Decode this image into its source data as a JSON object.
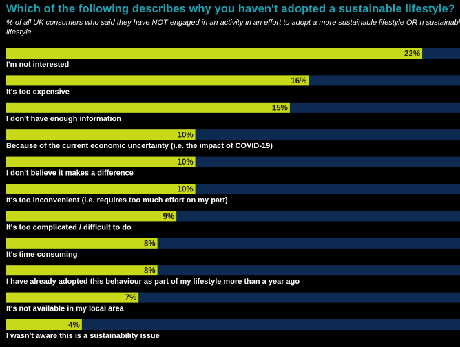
{
  "title": "Which of the following describes why you haven't adopted a sustainable lifestyle?",
  "subtitle": "% of all UK consumers who said they have NOT engaged in an activity in an effort to adopt a more sustainable lifestyle OR h sustainable lifestyle",
  "colors": {
    "background": "#000000",
    "title": "#1fa0b3",
    "bar_fill": "#c8d91a",
    "bar_track": "#0d2a52",
    "label_text": "#ffffff",
    "value_text": "#1a1a1a"
  },
  "chart_data": {
    "type": "bar",
    "orientation": "horizontal",
    "title": "Which of the following describes why you haven't adopted a sustainable lifestyle?",
    "categories": [
      "I'm not interested",
      "It's too expensive",
      "I don't have enough information",
      "Because of the current economic uncertainty (i.e. the impact of COVID-19)",
      "I don't believe it makes a difference",
      "It's too inconvenient (i.e. requires too much effort on my part)",
      "It's too complicated / difficult to do",
      "It's time-consuming",
      "I have already adopted this behaviour as part of my lifestyle more than a year ago",
      "It's not available in my local area",
      "I wasn't aware this is a sustainability issue"
    ],
    "values": [
      22,
      16,
      15,
      10,
      10,
      10,
      9,
      8,
      8,
      7,
      4
    ],
    "value_labels": [
      "22%",
      "16%",
      "15%",
      "10%",
      "10%",
      "10%",
      "9%",
      "8%",
      "8%",
      "7%",
      "4%"
    ],
    "unit": "%",
    "xlim": [
      0,
      24
    ],
    "grid": false,
    "legend": "none"
  }
}
